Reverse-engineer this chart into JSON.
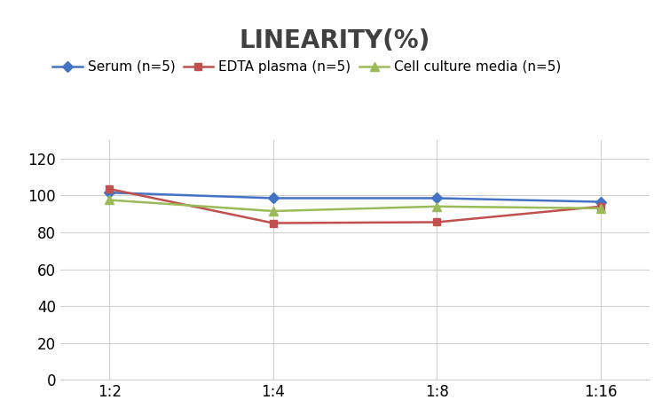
{
  "title": "LINEARITY(%)",
  "title_fontsize": 20,
  "title_fontweight": "bold",
  "x_labels": [
    "1:2",
    "1:4",
    "1:8",
    "1:16"
  ],
  "x_positions": [
    0,
    1,
    2,
    3
  ],
  "series": [
    {
      "label": "Serum (n=5)",
      "values": [
        101.5,
        98.5,
        98.5,
        96.5
      ],
      "color": "#4472C4",
      "marker": "D",
      "markersize": 6,
      "linewidth": 1.8
    },
    {
      "label": "EDTA plasma (n=5)",
      "values": [
        103.5,
        85.0,
        85.5,
        94.0
      ],
      "color": "#C0504D",
      "marker": "s",
      "markersize": 6,
      "linewidth": 1.8
    },
    {
      "label": "Cell culture media (n=5)",
      "values": [
        97.5,
        91.5,
        94.0,
        93.0
      ],
      "color": "#9BBB59",
      "marker": "^",
      "markersize": 7,
      "linewidth": 1.8
    }
  ],
  "ylim": [
    0,
    130
  ],
  "yticks": [
    0,
    20,
    40,
    60,
    80,
    100,
    120
  ],
  "background_color": "#ffffff",
  "grid_color": "#d0d0d0",
  "legend_fontsize": 11,
  "tick_fontsize": 12
}
